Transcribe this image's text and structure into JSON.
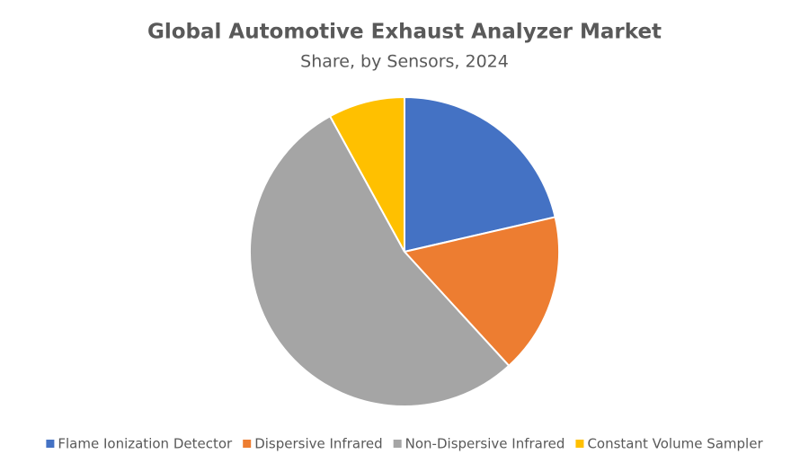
{
  "chart_data": {
    "type": "pie",
    "title": "Global Automotive Exhaust Analyzer Market",
    "subtitle": "Share, by Sensors, 2024",
    "categories": [
      "Flame Ionization Detector",
      "Dispersive Infrared",
      "Non-Dispersive Infrared",
      "Constant Volume Sampler"
    ],
    "values": [
      21.4,
      16.8,
      53.8,
      8.0
    ],
    "colors": [
      "#4472c4",
      "#ed7d31",
      "#a5a5a5",
      "#ffc000"
    ],
    "legend": "bottom"
  }
}
